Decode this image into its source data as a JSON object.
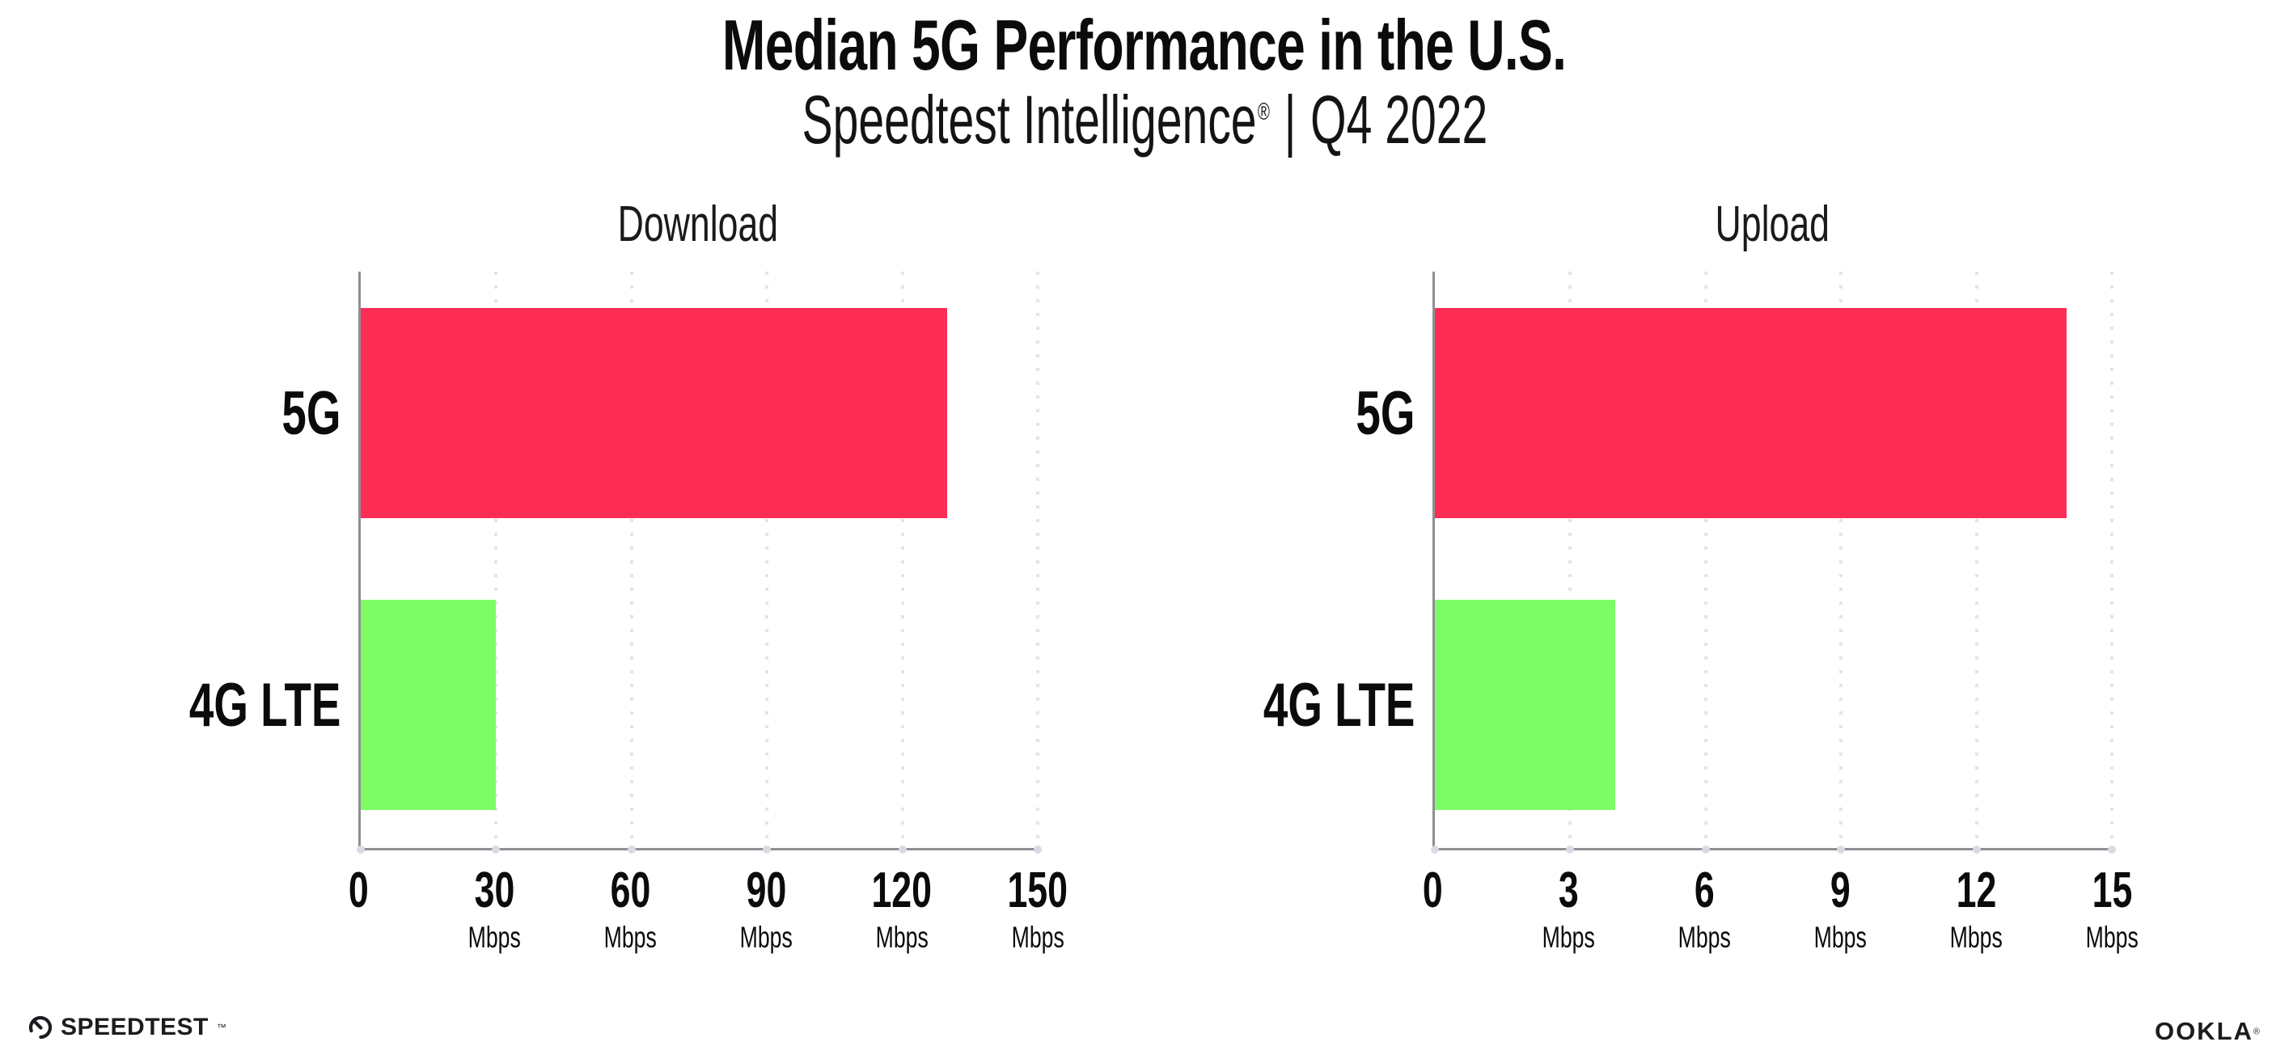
{
  "header": {
    "title": "Median 5G Performance in the U.S.",
    "subtitle_brand": "Speedtest Intelligence",
    "subtitle_reg": "®",
    "subtitle_sep": "|",
    "subtitle_period": "Q4 2022"
  },
  "colors": {
    "bar_5g": "#fd2d56",
    "bar_4g_lte": "#7dfc66",
    "gridline": "#e3e3ed",
    "tick_dot": "#dadae4",
    "axis": "#8f8f93",
    "text": "#0d0d0d"
  },
  "chart_data": [
    {
      "type": "bar",
      "orientation": "horizontal",
      "title": "Download",
      "categories": [
        "5G",
        "4G LTE"
      ],
      "values": [
        130,
        30
      ],
      "unit": "Mbps",
      "xlim": [
        0,
        150
      ],
      "xticks": [
        0,
        30,
        60,
        90,
        120,
        150
      ],
      "xtick_labels": [
        "0",
        "30",
        "60",
        "90",
        "120",
        "150"
      ],
      "xtick_unit_labels": [
        "",
        "Mbps",
        "Mbps",
        "Mbps",
        "Mbps",
        "Mbps"
      ],
      "bar_colors": [
        "#fd2d56",
        "#7dfc66"
      ],
      "grid": true,
      "grid_style": "dotted-vertical",
      "legend": "none"
    },
    {
      "type": "bar",
      "orientation": "horizontal",
      "title": "Upload",
      "categories": [
        "5G",
        "4G LTE"
      ],
      "values": [
        14,
        4
      ],
      "unit": "Mbps",
      "xlim": [
        0,
        15
      ],
      "xticks": [
        0,
        3,
        6,
        9,
        12,
        15
      ],
      "xtick_labels": [
        "0",
        "3",
        "6",
        "9",
        "12",
        "15"
      ],
      "xtick_unit_labels": [
        "",
        "Mbps",
        "Mbps",
        "Mbps",
        "Mbps",
        "Mbps"
      ],
      "bar_colors": [
        "#fd2d56",
        "#7dfc66"
      ],
      "grid": true,
      "grid_style": "dotted-vertical",
      "legend": "none"
    }
  ],
  "footer": {
    "speedtest_label": "SPEEDTEST",
    "speedtest_tm": "™",
    "ookla_label": "OOKLA",
    "ookla_reg": "®"
  }
}
